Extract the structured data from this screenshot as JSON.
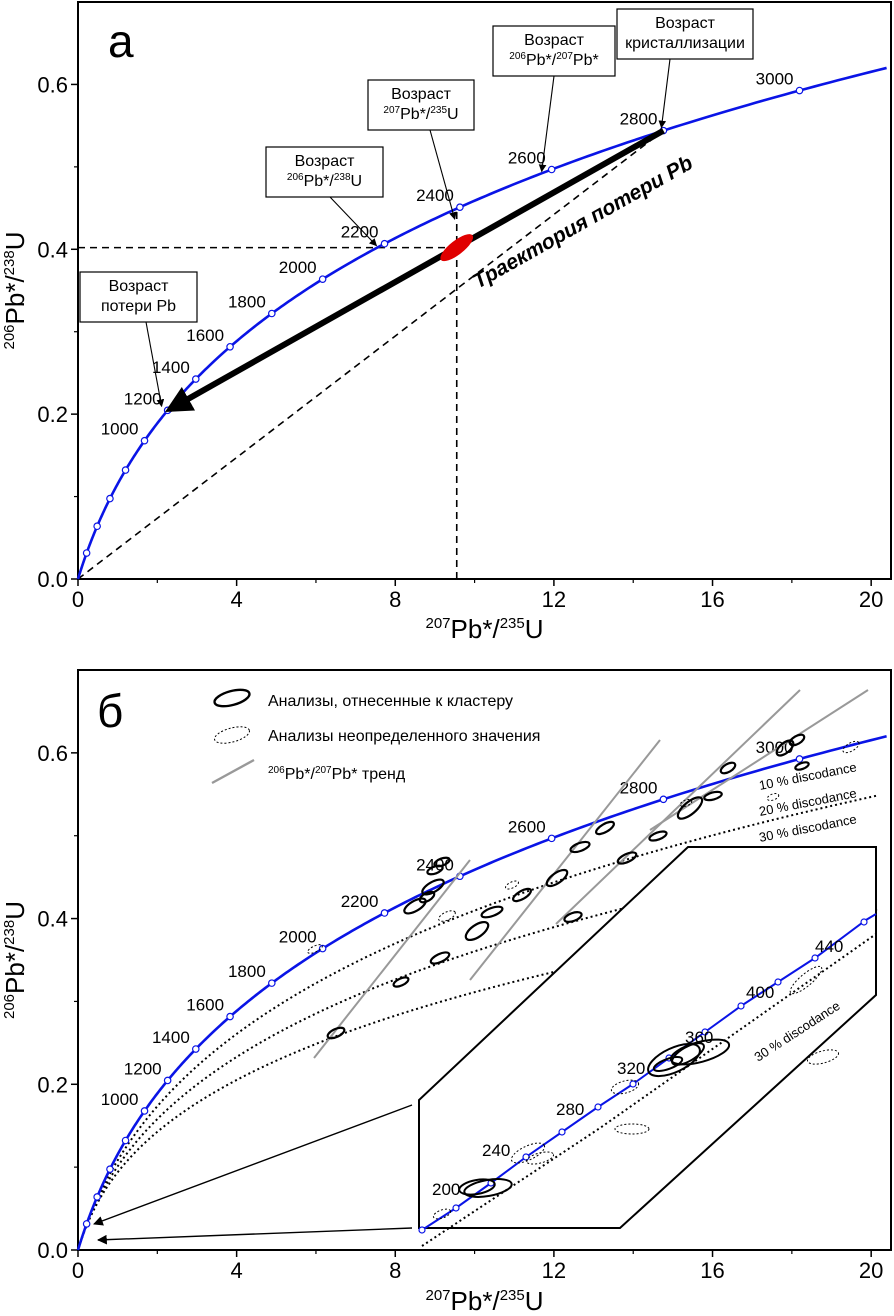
{
  "chart_data": [
    {
      "type": "scatter",
      "panel_label": "а",
      "xlabel": {
        "sup": "207",
        "main": "Pb*/",
        "sup2": "235",
        "end": "U"
      },
      "ylabel": {
        "sup": "206",
        "main": "Pb*/",
        "sup2": "238",
        "end": "U"
      },
      "xlim": [
        0,
        20.5
      ],
      "ylim": [
        0,
        0.7
      ],
      "x_ticks": [
        "0",
        "4",
        "8",
        "12",
        "16",
        "20"
      ],
      "y_ticks": [
        "0.0",
        "0.2",
        "0.4",
        "0.6"
      ],
      "concordia_color": "#0000ee",
      "concordia_ages_labelled": [
        "1000",
        "1200",
        "1400",
        "1600",
        "1800",
        "2000",
        "2200",
        "2400",
        "2600",
        "2800",
        "3000"
      ],
      "trajectory_label": "Траектория потери Pb",
      "crystallization_age_ma": 2800,
      "pb_loss_age_ma": 1200,
      "analysis_point": {
        "x": 9.55,
        "y": 0.402,
        "color": "#e00000"
      },
      "annotations": [
        {
          "l1": "Возраст",
          "l2": "кристаллизации"
        },
        {
          "l1": "Возраст",
          "l2a": "206",
          "l2b": "Pb*/",
          "l2c": "207",
          "l2d": "Pb*"
        },
        {
          "l1": "Возраст",
          "l2a": "207",
          "l2b": "Pb*/",
          "l2c": "235",
          "l2d": "U"
        },
        {
          "l1": "Возраст",
          "l2a": "206",
          "l2b": "Pb*/",
          "l2c": "238",
          "l2d": "U"
        },
        {
          "l1": "Возраст",
          "l2": "потери Pb"
        }
      ]
    },
    {
      "type": "scatter",
      "panel_label": "б",
      "xlabel": {
        "sup": "207",
        "main": "Pb*/",
        "sup2": "235",
        "end": "U"
      },
      "ylabel": {
        "sup": "206",
        "main": "Pb*/",
        "sup2": "238",
        "end": "U"
      },
      "xlim": [
        0,
        20.5
      ],
      "ylim": [
        0,
        0.7
      ],
      "x_ticks": [
        "0",
        "4",
        "8",
        "12",
        "16",
        "20"
      ],
      "y_ticks": [
        "0.0",
        "0.2",
        "0.4",
        "0.6"
      ],
      "concordia_ages_labelled": [
        "1000",
        "1200",
        "1400",
        "1600",
        "1800",
        "2000",
        "2200",
        "2400",
        "2600",
        "2800",
        "3000"
      ],
      "legend": [
        {
          "label": "Анализы, отнесенные к кластеру",
          "style": "solid-ellipse"
        },
        {
          "label": "Анализы неопределенного значения",
          "style": "dotted-ellipse"
        },
        {
          "label_sup1": "206",
          "label_a": "Pb*/",
          "label_sup2": "207",
          "label_b": "Pb* тренд",
          "style": "grey-line"
        }
      ],
      "discordance_curves": [
        {
          "label": "10 % discodance",
          "fraction": 0.1
        },
        {
          "label": "20 % discodance",
          "fraction": 0.2
        },
        {
          "label": "30 % discodance",
          "fraction": 0.3
        }
      ],
      "inset": {
        "age_labels": [
          "200",
          "240",
          "280",
          "320",
          "360",
          "400",
          "440"
        ],
        "discordance_label": "30 % discodance"
      }
    }
  ]
}
